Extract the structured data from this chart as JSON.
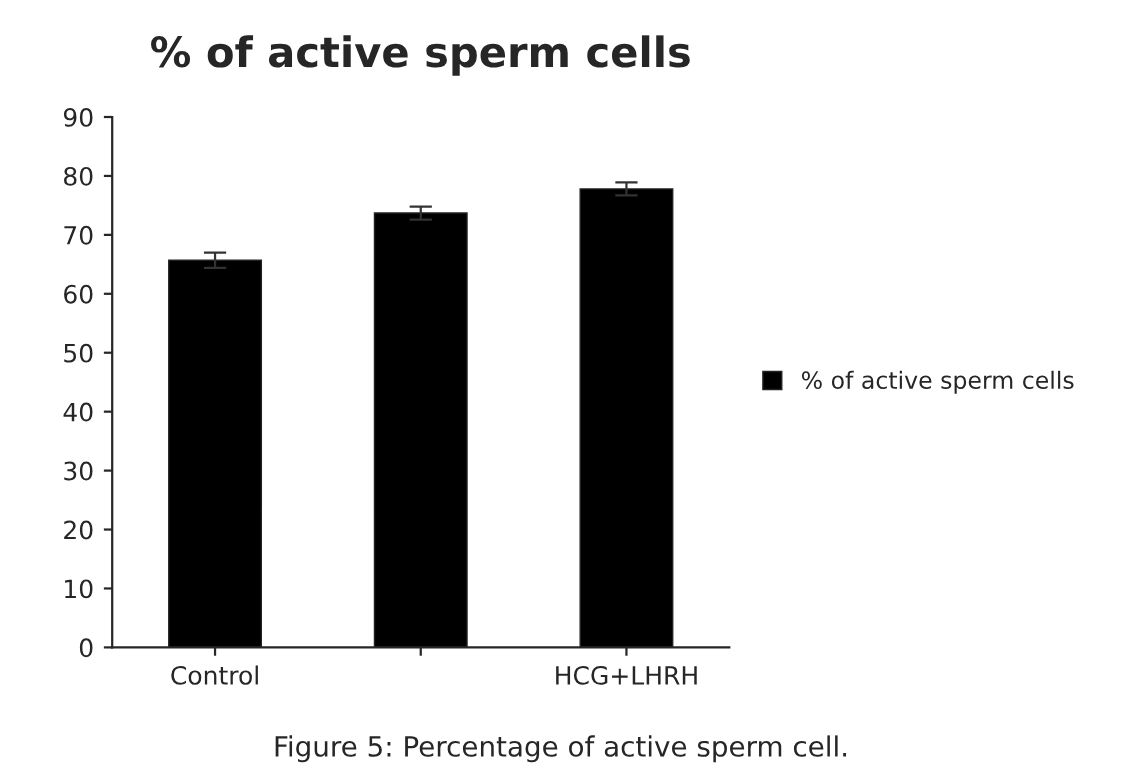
{
  "chart_data": {
    "type": "bar",
    "title": "% of active sperm cells",
    "categories": [
      "Control",
      null,
      "HCG+LHRH"
    ],
    "series": [
      {
        "name": "% of active sperm cells",
        "color": "#000000",
        "values": [
          65.7,
          73.7,
          77.8
        ],
        "errors": [
          1.3,
          1.1,
          1.1
        ]
      }
    ],
    "ylim": [
      0,
      90
    ],
    "yticks": [
      0,
      10,
      20,
      30,
      40,
      50,
      60,
      70,
      80,
      90
    ],
    "grid": false,
    "legend": "right",
    "annotations": [
      "Figure 5: Percentage of active sperm cell."
    ]
  }
}
